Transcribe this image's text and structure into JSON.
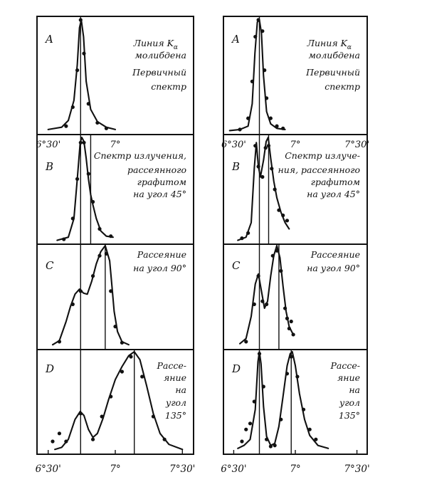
{
  "chart_data": [
    {
      "column": "left",
      "type": "line",
      "x_ticks": [
        {
          "label": "6°30'",
          "value": 390
        },
        {
          "label": "7°",
          "value": 420
        },
        {
          "label": "7°30'",
          "value": 450
        }
      ],
      "xlim": [
        385,
        455
      ],
      "panels": [
        {
          "letter": "A",
          "label_lines": [
            "Линия K",
            "молибдена",
            "Первичный",
            "спектр"
          ],
          "label_subscript": "α",
          "refs": [
            404.5
          ],
          "points": [
            [
              398,
              0.05
            ],
            [
              401,
              0.22
            ],
            [
              403,
              0.55
            ],
            [
              404.5,
              1.0
            ],
            [
              406,
              0.7
            ],
            [
              408,
              0.25
            ],
            [
              412,
              0.08
            ],
            [
              416,
              0.03
            ]
          ],
          "curve": [
            [
              390,
              0.02
            ],
            [
              396,
              0.04
            ],
            [
              399,
              0.1
            ],
            [
              401.5,
              0.28
            ],
            [
              403,
              0.6
            ],
            [
              404,
              0.93
            ],
            [
              404.8,
              1.0
            ],
            [
              405.8,
              0.85
            ],
            [
              407,
              0.45
            ],
            [
              409,
              0.2
            ],
            [
              412,
              0.09
            ],
            [
              416,
              0.04
            ],
            [
              420,
              0.02
            ]
          ]
        },
        {
          "letter": "B",
          "label_lines": [
            "Спектр излучения,",
            "рассеянного",
            "графитом",
            "на угол 45°"
          ],
          "refs": [
            404.5,
            409
          ],
          "tick_row": true,
          "points": [
            [
              397,
              0.02
            ],
            [
              401,
              0.22
            ],
            [
              403,
              0.6
            ],
            [
              404.5,
              0.95
            ],
            [
              406,
              0.95
            ],
            [
              408,
              0.65
            ],
            [
              410,
              0.38
            ],
            [
              413,
              0.12
            ],
            [
              418,
              0.05
            ]
          ],
          "curve": [
            [
              394,
              0.01
            ],
            [
              399,
              0.04
            ],
            [
              401.5,
              0.22
            ],
            [
              403,
              0.6
            ],
            [
              404.3,
              0.95
            ],
            [
              405,
              1.0
            ],
            [
              406,
              0.96
            ],
            [
              407,
              0.8
            ],
            [
              408,
              0.6
            ],
            [
              409,
              0.45
            ],
            [
              410,
              0.35
            ],
            [
              411.5,
              0.22
            ],
            [
              413.5,
              0.1
            ],
            [
              416,
              0.05
            ],
            [
              419,
              0.04
            ]
          ]
        },
        {
          "letter": "C",
          "label_lines": [
            "Рассеяние",
            "на угол 90°"
          ],
          "refs": [
            404.5,
            415.5
          ],
          "points": [
            [
              395,
              0.05
            ],
            [
              401,
              0.42
            ],
            [
              404.5,
              0.55
            ],
            [
              410,
              0.7
            ],
            [
              413,
              0.9
            ],
            [
              416,
              0.92
            ],
            [
              418,
              0.55
            ],
            [
              420,
              0.2
            ],
            [
              423,
              0.04
            ]
          ],
          "curve": [
            [
              392,
              0.02
            ],
            [
              395,
              0.06
            ],
            [
              398,
              0.25
            ],
            [
              400,
              0.4
            ],
            [
              402,
              0.52
            ],
            [
              404,
              0.57
            ],
            [
              405.8,
              0.53
            ],
            [
              407.5,
              0.52
            ],
            [
              409.5,
              0.65
            ],
            [
              411.5,
              0.82
            ],
            [
              413.5,
              0.94
            ],
            [
              415.5,
              1.0
            ],
            [
              417.5,
              0.85
            ],
            [
              418.5,
              0.6
            ],
            [
              419.5,
              0.35
            ],
            [
              421,
              0.15
            ],
            [
              423,
              0.05
            ],
            [
              426,
              0.02
            ]
          ]
        },
        {
          "letter": "D",
          "label_lines": [
            "Рассе-",
            "яние",
            "на",
            "угол",
            "135°"
          ],
          "refs": [
            404.5,
            428.5
          ],
          "points": [
            [
              392,
              0.1
            ],
            [
              395,
              0.18
            ],
            [
              398,
              0.1
            ],
            [
              404.5,
              0.38
            ],
            [
              410,
              0.12
            ],
            [
              414,
              0.35
            ],
            [
              418,
              0.55
            ],
            [
              423,
              0.8
            ],
            [
              427,
              0.95
            ],
            [
              432,
              0.75
            ],
            [
              437,
              0.35
            ],
            [
              442,
              0.12
            ]
          ],
          "curve": [
            [
              393,
              0.02
            ],
            [
              396,
              0.04
            ],
            [
              399,
              0.12
            ],
            [
              402,
              0.32
            ],
            [
              404.3,
              0.4
            ],
            [
              406,
              0.36
            ],
            [
              408,
              0.22
            ],
            [
              410,
              0.14
            ],
            [
              412,
              0.18
            ],
            [
              414.5,
              0.33
            ],
            [
              417,
              0.52
            ],
            [
              420,
              0.72
            ],
            [
              423,
              0.85
            ],
            [
              426,
              0.96
            ],
            [
              428.5,
              1.0
            ],
            [
              431,
              0.92
            ],
            [
              434,
              0.66
            ],
            [
              437,
              0.38
            ],
            [
              440,
              0.18
            ],
            [
              444,
              0.07
            ],
            [
              450,
              0.02
            ]
          ]
        }
      ]
    },
    {
      "column": "right",
      "type": "line",
      "x_ticks": [
        {
          "label": "6°30'",
          "value": 390
        },
        {
          "label": "7°",
          "value": 420
        },
        {
          "label": "7°30'",
          "value": 450
        }
      ],
      "xlim": [
        385,
        455
      ],
      "panels": [
        {
          "letter": "A",
          "label_lines": [
            "Линия K",
            "молибдена",
            "Первичный",
            "спектр"
          ],
          "label_subscript": "α",
          "refs": [
            402.5
          ],
          "points": [
            [
              393,
              0.02
            ],
            [
              397,
              0.12
            ],
            [
              399,
              0.45
            ],
            [
              400.5,
              0.85
            ],
            [
              402,
              1.0
            ],
            [
              404,
              0.9
            ],
            [
              405,
              0.55
            ],
            [
              406,
              0.3
            ],
            [
              408,
              0.12
            ],
            [
              411,
              0.05
            ],
            [
              414,
              0.03
            ]
          ],
          "curve": [
            [
              388,
              0.01
            ],
            [
              393,
              0.02
            ],
            [
              397,
              0.05
            ],
            [
              399,
              0.25
            ],
            [
              400.3,
              0.7
            ],
            [
              401.5,
              0.98
            ],
            [
              402.5,
              1.0
            ],
            [
              403.5,
              0.88
            ],
            [
              404.5,
              0.5
            ],
            [
              406,
              0.18
            ],
            [
              408,
              0.07
            ],
            [
              411,
              0.03
            ],
            [
              415,
              0.02
            ]
          ]
        },
        {
          "letter": "B",
          "label_lines": [
            "Спектр излуче-",
            "ния, рассеянного",
            "графитом",
            "на угол 45°"
          ],
          "refs": [
            402.5,
            407
          ],
          "tick_row": true,
          "points": [
            [
              394,
              0.03
            ],
            [
              397,
              0.08
            ],
            [
              400.5,
              0.92
            ],
            [
              402,
              0.72
            ],
            [
              404,
              0.62
            ],
            [
              405.5,
              0.9
            ],
            [
              407,
              0.92
            ],
            [
              408.5,
              0.7
            ],
            [
              410,
              0.5
            ],
            [
              412,
              0.3
            ],
            [
              414,
              0.25
            ],
            [
              416,
              0.2
            ]
          ],
          "curve": [
            [
              392,
              0.01
            ],
            [
              396,
              0.04
            ],
            [
              398.5,
              0.18
            ],
            [
              400,
              0.7
            ],
            [
              401,
              0.95
            ],
            [
              402,
              0.72
            ],
            [
              403,
              0.62
            ],
            [
              404.5,
              0.78
            ],
            [
              405.8,
              0.96
            ],
            [
              406.8,
              1.0
            ],
            [
              408,
              0.8
            ],
            [
              409.5,
              0.58
            ],
            [
              411,
              0.42
            ],
            [
              413,
              0.28
            ],
            [
              415,
              0.18
            ],
            [
              417,
              0.12
            ]
          ]
        },
        {
          "letter": "C",
          "label_lines": [
            "Рассеяние",
            "на угол 90°"
          ],
          "refs": [
            402.5,
            412
          ],
          "points": [
            [
              396,
              0.05
            ],
            [
              400,
              0.42
            ],
            [
              402,
              0.7
            ],
            [
              404,
              0.45
            ],
            [
              406,
              0.42
            ],
            [
              409,
              0.9
            ],
            [
              411,
              0.95
            ],
            [
              413,
              0.75
            ],
            [
              415,
              0.38
            ],
            [
              416,
              0.28
            ],
            [
              417,
              0.18
            ],
            [
              418,
              0.25
            ],
            [
              419,
              0.12
            ]
          ],
          "curve": [
            [
              393,
              0.03
            ],
            [
              396,
              0.08
            ],
            [
              398.5,
              0.3
            ],
            [
              400.5,
              0.62
            ],
            [
              402,
              0.72
            ],
            [
              403.5,
              0.55
            ],
            [
              405,
              0.38
            ],
            [
              406.5,
              0.45
            ],
            [
              408,
              0.7
            ],
            [
              409.5,
              0.9
            ],
            [
              411,
              1.0
            ],
            [
              412.5,
              0.88
            ],
            [
              414,
              0.6
            ],
            [
              415.5,
              0.35
            ],
            [
              417,
              0.2
            ],
            [
              419,
              0.12
            ]
          ]
        },
        {
          "letter": "D",
          "label_lines": [
            "Рассе-",
            "яние",
            "на",
            "угол",
            "135°"
          ],
          "refs": [
            402.5,
            418
          ],
          "points": [
            [
              394,
              0.1
            ],
            [
              396,
              0.22
            ],
            [
              398,
              0.28
            ],
            [
              400,
              0.5
            ],
            [
              402.5,
              0.98
            ],
            [
              404.5,
              0.65
            ],
            [
              406,
              0.12
            ],
            [
              408,
              0.05
            ],
            [
              410,
              0.06
            ],
            [
              413,
              0.32
            ],
            [
              416,
              0.78
            ],
            [
              418,
              0.95
            ],
            [
              421,
              0.75
            ],
            [
              424,
              0.42
            ],
            [
              427,
              0.22
            ],
            [
              430,
              0.12
            ]
          ],
          "curve": [
            [
              392,
              0.03
            ],
            [
              395,
              0.06
            ],
            [
              398,
              0.12
            ],
            [
              400.5,
              0.42
            ],
            [
              401.8,
              0.9
            ],
            [
              402.5,
              1.0
            ],
            [
              403.3,
              0.88
            ],
            [
              404.5,
              0.45
            ],
            [
              406,
              0.15
            ],
            [
              408,
              0.06
            ],
            [
              410,
              0.08
            ],
            [
              412,
              0.25
            ],
            [
              414,
              0.55
            ],
            [
              416,
              0.86
            ],
            [
              417.5,
              0.98
            ],
            [
              418.5,
              1.0
            ],
            [
              420,
              0.86
            ],
            [
              422,
              0.58
            ],
            [
              424.5,
              0.32
            ],
            [
              427,
              0.16
            ],
            [
              431,
              0.06
            ],
            [
              436,
              0.03
            ]
          ]
        }
      ]
    }
  ]
}
